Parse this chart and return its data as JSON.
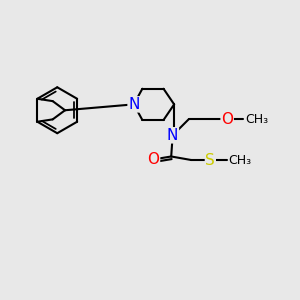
{
  "background_color": "#e8e8e8",
  "bond_color": "#000000",
  "bond_width": 1.5,
  "atom_colors": {
    "N": "#0000ff",
    "O": "#ff0000",
    "S": "#cccc00",
    "C": "#000000"
  },
  "font_size_atom": 11,
  "font_size_methyl": 9,
  "xlim": [
    0,
    10
  ],
  "ylim": [
    0,
    10
  ],
  "figsize": [
    3.0,
    3.0
  ],
  "dpi": 100
}
